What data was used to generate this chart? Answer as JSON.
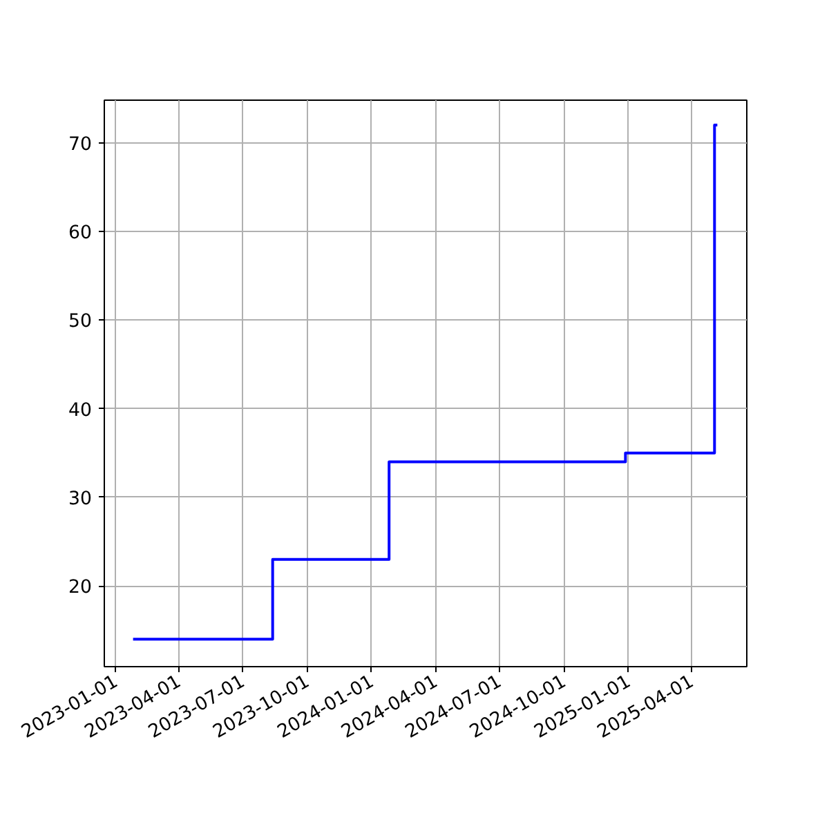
{
  "chart_data": {
    "type": "step",
    "x": [
      "2023-01-26",
      "2023-08-13",
      "2024-01-26",
      "2024-12-28",
      "2025-05-04",
      "2025-05-08"
    ],
    "series": [
      {
        "color": "#0000ff",
        "values": [
          14,
          23,
          34,
          35,
          72,
          72
        ]
      }
    ],
    "xlim": [
      "2022-12-16",
      "2025-06-19"
    ],
    "xticks": [
      "2023-01-01",
      "2023-04-01",
      "2023-07-01",
      "2023-10-01",
      "2024-01-01",
      "2024-04-01",
      "2024-07-01",
      "2024-10-01",
      "2025-01-01",
      "2025-04-01"
    ],
    "ylim": [
      10.9,
      74.8
    ],
    "yticks": [
      20,
      30,
      40,
      50,
      60,
      70
    ],
    "grid": true
  }
}
